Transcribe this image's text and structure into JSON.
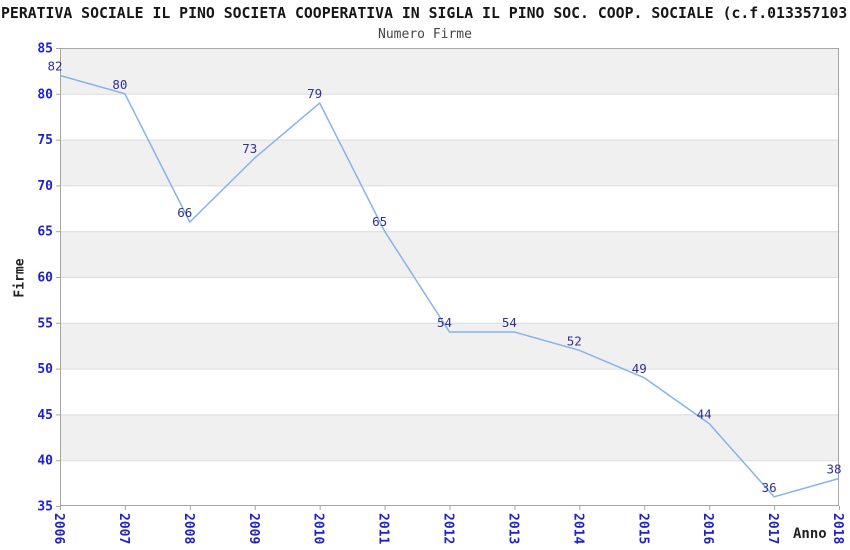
{
  "header": {
    "title": "PERATIVA SOCIALE IL PINO SOCIETA COOPERATIVA IN SIGLA IL PINO SOC. COOP. SOCIALE (c.f.013357103"
  },
  "chart_data": {
    "type": "line",
    "title": "Numero Firme",
    "xlabel": "Anno",
    "ylabel": "Firme",
    "x": [
      "2006",
      "2007",
      "2008",
      "2009",
      "2010",
      "2011",
      "2012",
      "2013",
      "2014",
      "2015",
      "2016",
      "2017",
      "2018"
    ],
    "values": [
      82,
      80,
      66,
      73,
      79,
      65,
      54,
      54,
      52,
      49,
      44,
      36,
      38
    ],
    "ylim": [
      35,
      85
    ],
    "ytick_step": 5,
    "grid": "horizontal alternating bands every 5 units, gray band at top (80-85)",
    "legend": "none",
    "point_labels_visible": true,
    "colors": {
      "line": "#87b3e9",
      "value_label": "#313192",
      "tick_label": "#2121cc",
      "band": "#f0f0f0",
      "gridline": "#dcdcdc",
      "plot_border": "#a6a6a6"
    }
  }
}
